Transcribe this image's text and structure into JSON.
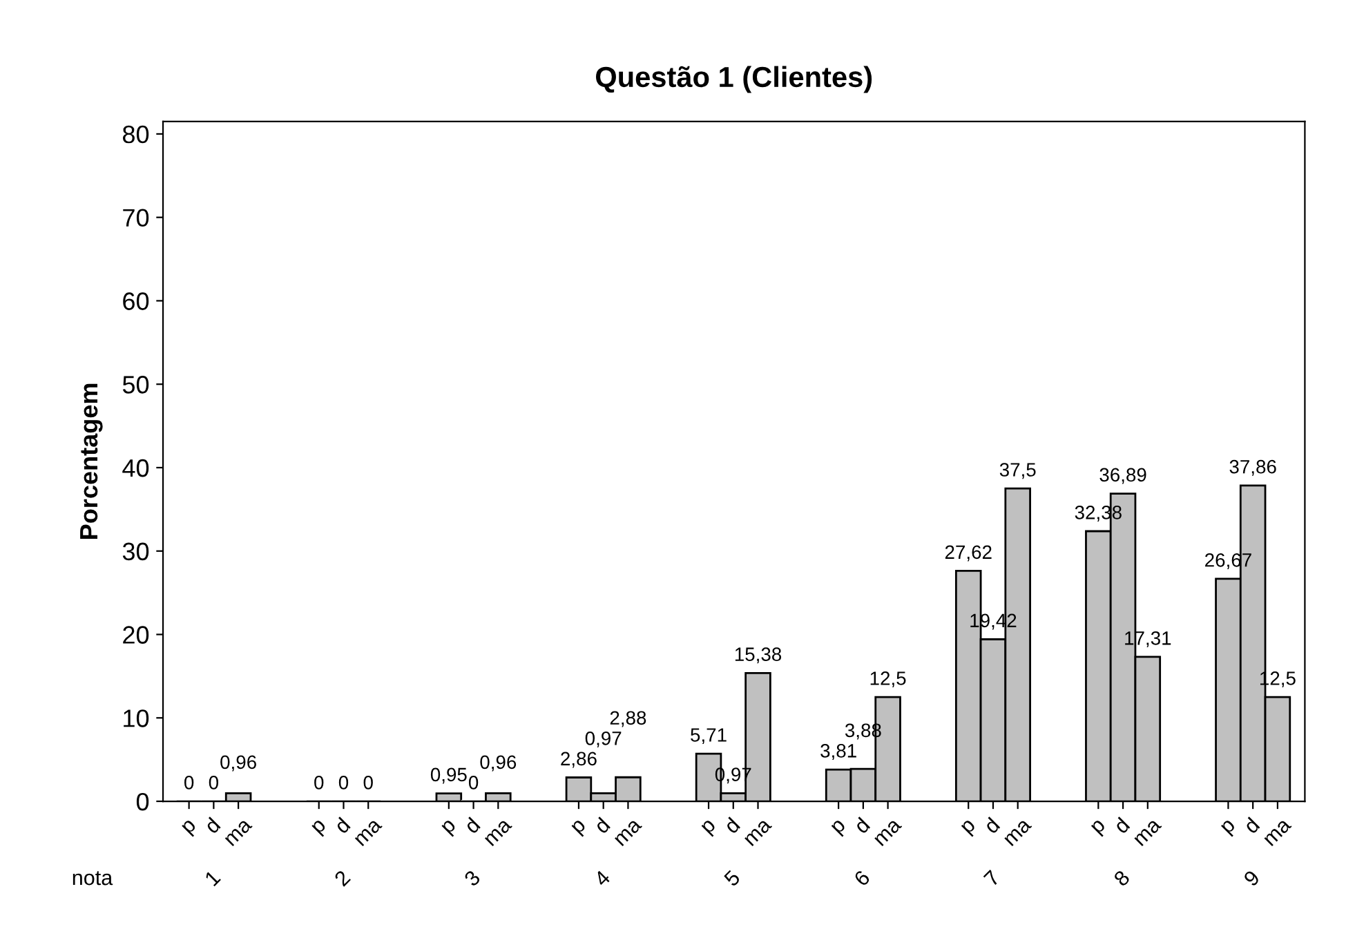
{
  "chart_data": {
    "type": "bar",
    "title": "Questão 1 (Clientes)",
    "ylabel": "Porcentagem",
    "xlabel": "nota",
    "categories": [
      "1",
      "2",
      "3",
      "4",
      "5",
      "6",
      "7",
      "8",
      "9"
    ],
    "series": [
      {
        "name": "p",
        "color": "#c0c0c0",
        "values": [
          0,
          0,
          0.95,
          2.86,
          5.71,
          3.81,
          27.62,
          32.38,
          26.67
        ],
        "value_labels": [
          "0",
          "0",
          "0,95",
          "2,86",
          "5,71",
          "3,81",
          "27,62",
          "32,38",
          "26,67"
        ]
      },
      {
        "name": "d",
        "color": "#c0c0c0",
        "values": [
          0,
          0,
          0,
          0.97,
          0.97,
          3.88,
          19.42,
          36.89,
          37.86
        ],
        "value_labels": [
          "0",
          "0",
          "0",
          "0,97",
          "0,97",
          "3,88",
          "19,42",
          "36,89",
          "37,86"
        ]
      },
      {
        "name": "ma",
        "color": "#c0c0c0",
        "values": [
          0.96,
          0,
          0.96,
          2.88,
          15.38,
          12.5,
          37.5,
          17.31,
          12.5
        ],
        "value_labels": [
          "0,96",
          "0",
          "0,96",
          "2,88",
          "15,38",
          "12,5",
          "37,5",
          "17,31",
          "12,5"
        ]
      }
    ],
    "ylim": [
      0,
      81.5
    ],
    "yticks": [
      0,
      10,
      20,
      30,
      40,
      50,
      60,
      70,
      80
    ],
    "grid": false,
    "legend": "bottom"
  }
}
